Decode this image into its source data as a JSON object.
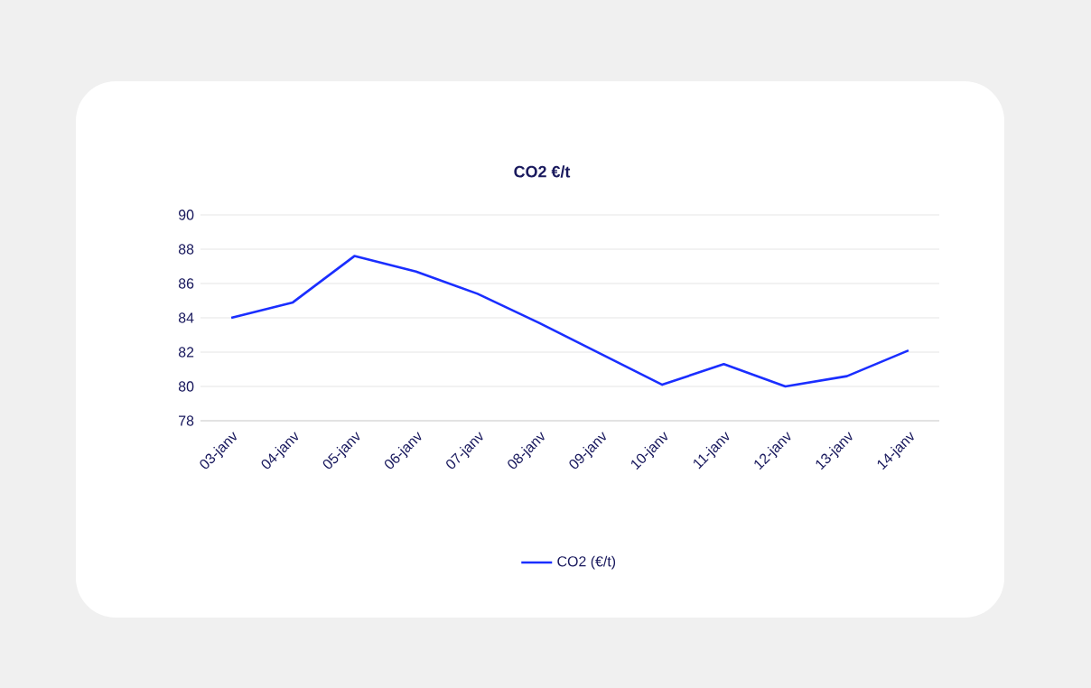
{
  "chart_data": {
    "type": "line",
    "title": "CO2 €/t",
    "categories": [
      "03-janv",
      "04-janv",
      "05-janv",
      "06-janv",
      "07-janv",
      "08-janv",
      "09-janv",
      "10-janv",
      "11-janv",
      "12-janv",
      "13-janv",
      "14-janv"
    ],
    "series": [
      {
        "name": "CO2 (€/t)",
        "color": "#1a2eff",
        "values": [
          84.0,
          84.9,
          87.6,
          86.7,
          85.4,
          83.7,
          81.9,
          80.1,
          81.3,
          80.0,
          80.6,
          82.1
        ]
      }
    ],
    "ylim": [
      78,
      90
    ],
    "yticks": [
      78,
      80,
      82,
      84,
      86,
      88,
      90
    ],
    "grid": "y",
    "legend": "bottom",
    "marker": "none",
    "line_style": "solid"
  }
}
